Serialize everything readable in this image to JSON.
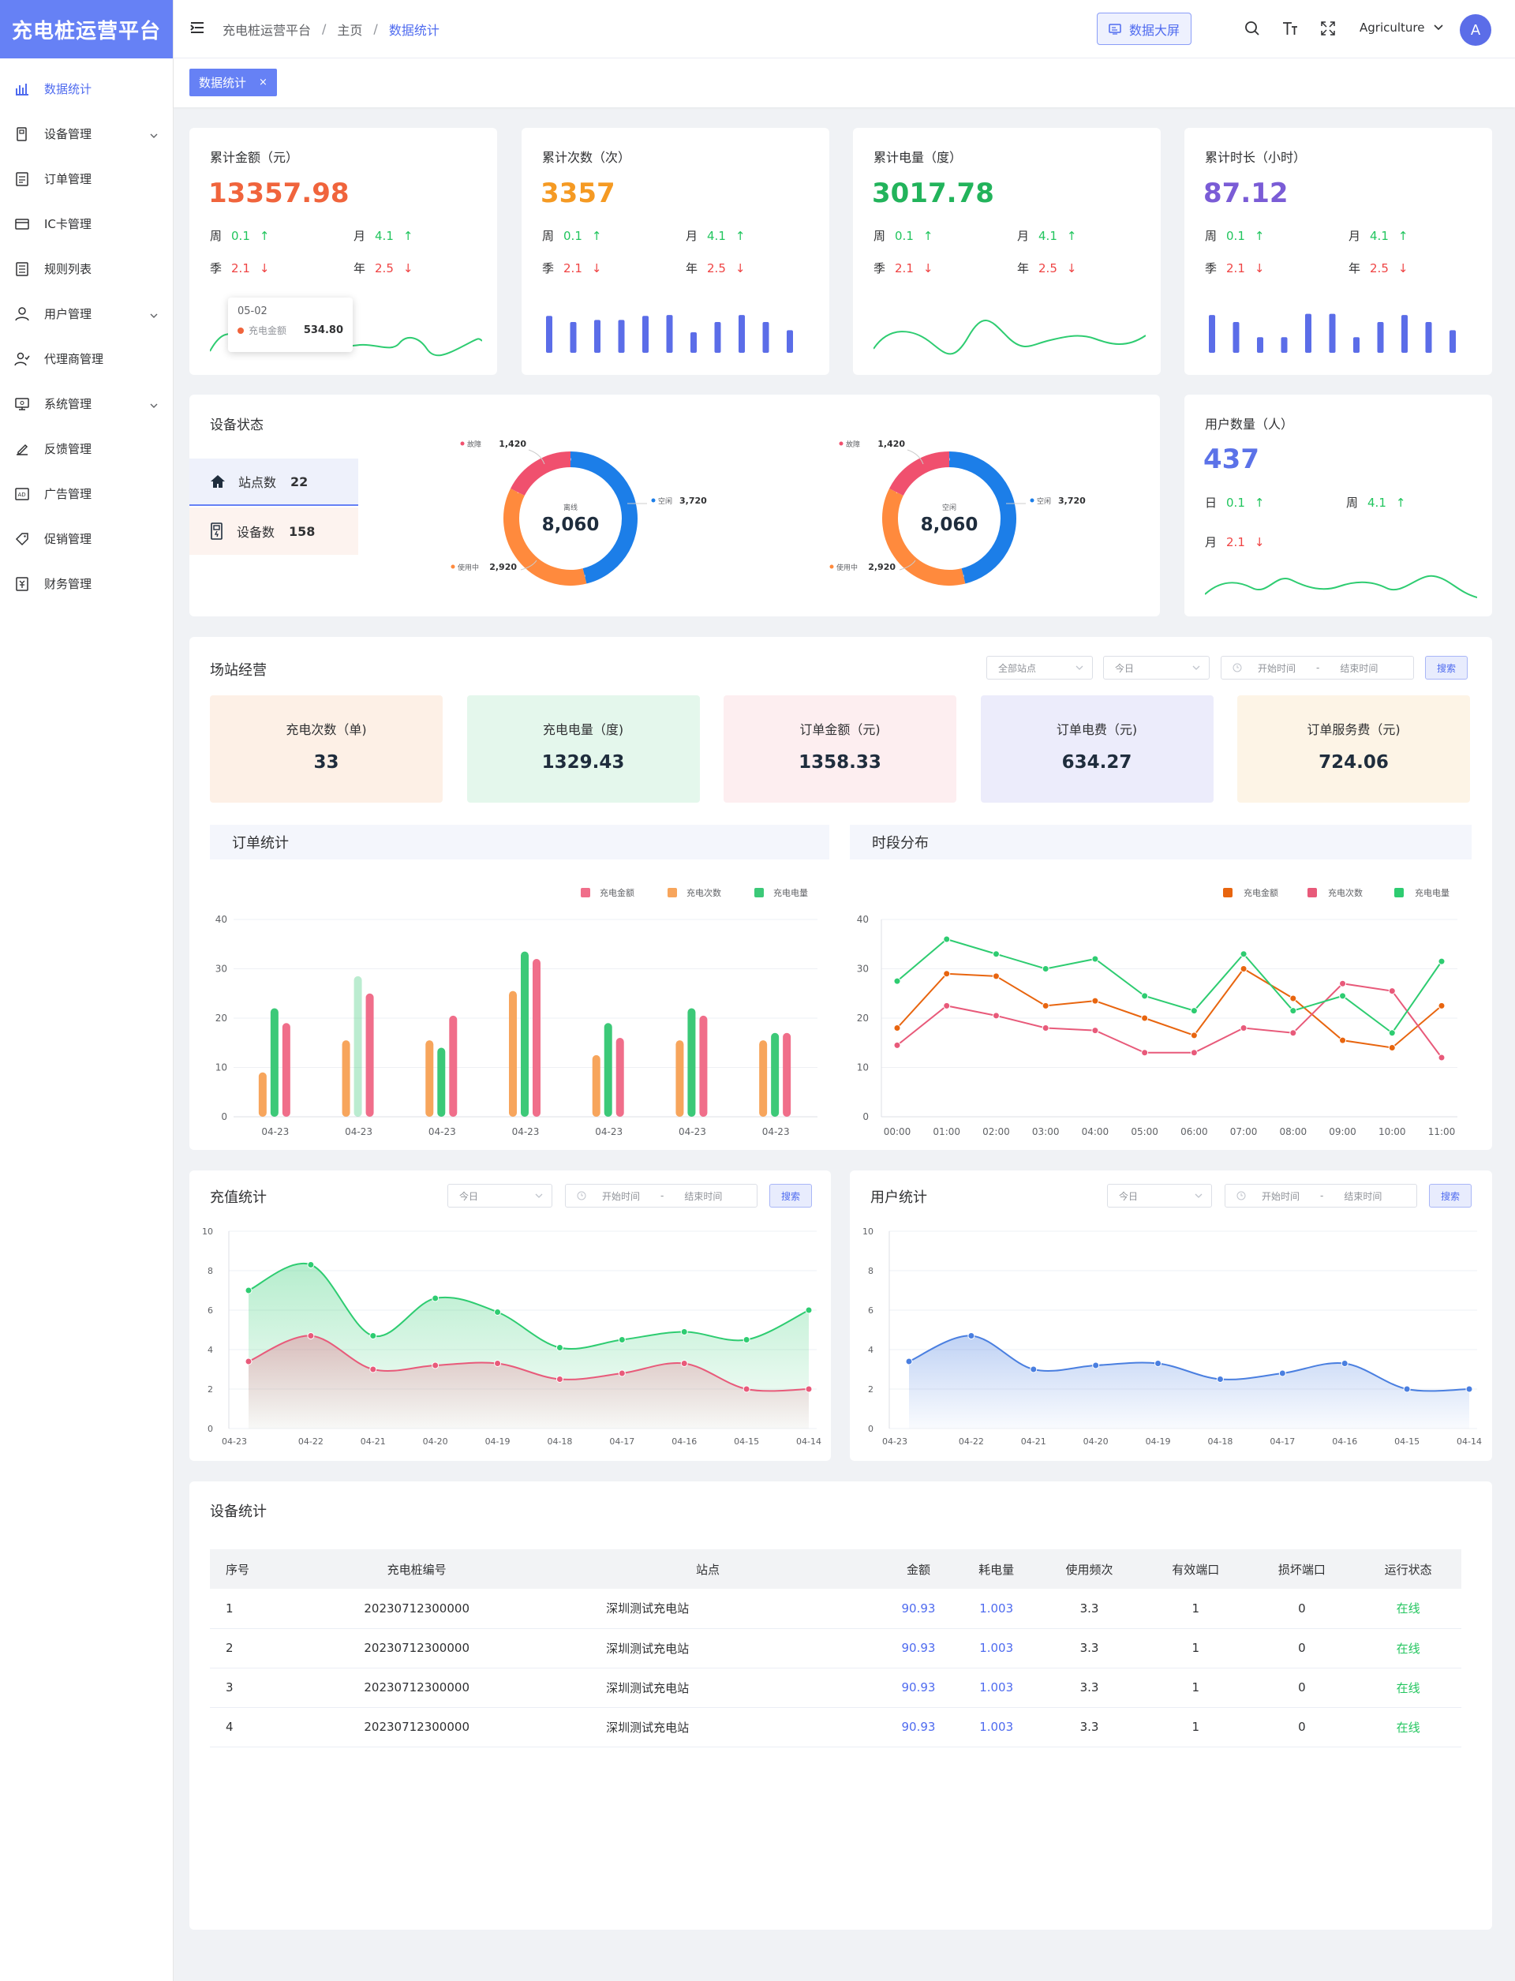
{
  "app": {
    "title": "充电桩运营平台"
  },
  "sidebar": {
    "items": [
      {
        "label": "数据统计",
        "icon": "bar-chart-icon",
        "active": true,
        "expandable": false
      },
      {
        "label": "设备管理",
        "icon": "device-icon",
        "active": false,
        "expandable": true
      },
      {
        "label": "订单管理",
        "icon": "order-icon",
        "active": false,
        "expandable": false
      },
      {
        "label": "IC卡管理",
        "icon": "card-icon",
        "active": false,
        "expandable": false
      },
      {
        "label": "规则列表",
        "icon": "rules-icon",
        "active": false,
        "expandable": false
      },
      {
        "label": "用户管理",
        "icon": "user-icon",
        "active": false,
        "expandable": true
      },
      {
        "label": "代理商管理",
        "icon": "agent-icon",
        "active": false,
        "expandable": false
      },
      {
        "label": "系统管理",
        "icon": "monitor-icon",
        "active": false,
        "expandable": true
      },
      {
        "label": "反馈管理",
        "icon": "feedback-icon",
        "active": false,
        "expandable": false
      },
      {
        "label": "广告管理",
        "icon": "ad-icon",
        "active": false,
        "expandable": false
      },
      {
        "label": "促销管理",
        "icon": "tag-icon",
        "active": false,
        "expandable": false
      },
      {
        "label": "财务管理",
        "icon": "finance-icon",
        "active": false,
        "expandable": false
      }
    ]
  },
  "header": {
    "breadcrumb": [
      "充电桩运营平台",
      "主页",
      "数据统计"
    ],
    "bigscreen_label": "数据大屏",
    "user_name": "Agriculture",
    "avatar_letter": "A"
  },
  "tabs": [
    {
      "label": "数据统计",
      "close": "×"
    }
  ],
  "kpis": [
    {
      "title": "累计金额（元）",
      "value": "13357.98",
      "color": "#f0643c",
      "week_label": "周",
      "week": "0.1",
      "month_label": "月",
      "month": "4.1",
      "quarter_label": "季",
      "quarter": "2.1",
      "year_label": "年",
      "year": "2.5",
      "spark": "line",
      "tooltip": {
        "date": "05-02",
        "series": "充电金额",
        "value": "534.80"
      }
    },
    {
      "title": "累计次数（次）",
      "value": "3357",
      "color": "#f59a23",
      "week_label": "周",
      "week": "0.1",
      "month_label": "月",
      "month": "4.1",
      "quarter_label": "季",
      "quarter": "2.1",
      "year_label": "年",
      "year": "2.5",
      "spark": "bars",
      "bars": [
        0.9,
        0.75,
        0.8,
        0.8,
        0.9,
        0.92,
        0.5,
        0.75,
        0.92,
        0.75,
        0.55
      ]
    },
    {
      "title": "累计电量（度）",
      "value": "3017.78",
      "color": "#22b35b",
      "week_label": "周",
      "week": "0.1",
      "month_label": "月",
      "month": "4.1",
      "quarter_label": "季",
      "quarter": "2.1",
      "year_label": "年",
      "year": "2.5",
      "spark": "line"
    },
    {
      "title": "累计时长（小时）",
      "value": "87.12",
      "color": "#7a5cd6",
      "week_label": "周",
      "week": "0.1",
      "month_label": "月",
      "month": "4.1",
      "quarter_label": "季",
      "quarter": "2.1",
      "year_label": "年",
      "year": "2.5",
      "spark": "bars",
      "bars": [
        0.92,
        0.75,
        0.38,
        0.38,
        0.95,
        0.95,
        0.38,
        0.75,
        0.92,
        0.75,
        0.55
      ]
    }
  ],
  "device_status": {
    "title": "设备状态",
    "stations_label": "站点数",
    "stations": "22",
    "devices_label": "设备数",
    "devices": "158",
    "donuts": [
      {
        "total": "8,060",
        "center_label": "离线",
        "segments": [
          {
            "name": "故障",
            "value": 1420,
            "display": "1,420",
            "color": "#f0506e"
          },
          {
            "name": "空闲",
            "value": 3720,
            "display": "3,720",
            "color": "#1c7ee8"
          },
          {
            "name": "使用中",
            "value": 2920,
            "display": "2,920",
            "color": "#ff8a3d"
          }
        ]
      },
      {
        "total": "8,060",
        "center_label": "空闲",
        "segments": [
          {
            "name": "故障",
            "value": 1420,
            "display": "1,420",
            "color": "#f0506e"
          },
          {
            "name": "空闲",
            "value": 3720,
            "display": "3,720",
            "color": "#1c7ee8"
          },
          {
            "name": "使用中",
            "value": 2920,
            "display": "2,920",
            "color": "#ff8a3d"
          }
        ]
      }
    ]
  },
  "user_count": {
    "title": "用户数量（人）",
    "value": "437",
    "day_label": "日",
    "day": "0.1",
    "week_label": "周",
    "week": "4.1",
    "month_label": "月",
    "month": "2.1"
  },
  "station_ops": {
    "title": "场站经营",
    "filters": {
      "station": "全部站点",
      "range": "今日",
      "start": "开始时间",
      "dash": "-",
      "end": "结束时间",
      "search": "搜索"
    },
    "boxes": [
      {
        "label": "充电次数（单)",
        "value": "33",
        "bg": "#fdf0e6"
      },
      {
        "label": "充电电量（度)",
        "value": "1329.43",
        "bg": "#e4f7ec"
      },
      {
        "label": "订单金额（元)",
        "value": "1358.33",
        "bg": "#fdeef0"
      },
      {
        "label": "订单电费（元)",
        "value": "634.27",
        "bg": "#ececfb"
      },
      {
        "label": "订单服务费（元)",
        "value": "724.06",
        "bg": "#fdf4e6"
      }
    ]
  },
  "order_chart_title": "订单统计",
  "period_chart_title": "时段分布",
  "recharge": {
    "title": "充值统计",
    "range": "今日",
    "start": "开始时间",
    "dash": "-",
    "end": "结束时间",
    "search": "搜索"
  },
  "user_stats": {
    "title": "用户统计",
    "range": "今日",
    "start": "开始时间",
    "dash": "-",
    "end": "结束时间",
    "search": "搜索"
  },
  "chart_data": [
    {
      "type": "bar",
      "title": "订单统计",
      "categories": [
        "04-23",
        "04-23",
        "04-23",
        "04-23",
        "04-23",
        "04-23",
        "04-23"
      ],
      "ylim": [
        0,
        40
      ],
      "yticks": [
        0,
        10,
        20,
        30,
        40
      ],
      "series": [
        {
          "name": "充电金额",
          "color": "#f06e8a",
          "values": [
            19,
            25,
            20.5,
            32,
            16,
            20.5,
            17
          ]
        },
        {
          "name": "充电次数",
          "color": "#f7a55c",
          "values": [
            9,
            15.5,
            15.5,
            25.5,
            12.5,
            15.5,
            15.5
          ]
        },
        {
          "name": "充电电量",
          "color": "#3cc978",
          "values": [
            22,
            28.5,
            14,
            33.5,
            19,
            22,
            17
          ]
        }
      ],
      "legend": "top-right"
    },
    {
      "type": "line",
      "title": "时段分布",
      "categories": [
        "00:00",
        "01:00",
        "02:00",
        "03:00",
        "04:00",
        "05:00",
        "06:00",
        "07:00",
        "08:00",
        "09:00",
        "10:00",
        "11:00"
      ],
      "ylim": [
        0,
        40
      ],
      "yticks": [
        0,
        10,
        20,
        30,
        40
      ],
      "series": [
        {
          "name": "充电金额",
          "color": "#e8650f",
          "values": [
            18,
            29,
            28.5,
            22.5,
            23.5,
            20,
            16.5,
            30,
            24,
            15.5,
            14,
            22.5
          ]
        },
        {
          "name": "充电次数",
          "color": "#e85a7a",
          "values": [
            14.5,
            22.5,
            20.5,
            18,
            17.5,
            13,
            13,
            18,
            17,
            27,
            25.5,
            12
          ]
        },
        {
          "name": "充电电量",
          "color": "#2ecc71",
          "values": [
            27.5,
            36,
            33,
            30,
            32,
            24.5,
            21.5,
            33,
            21.5,
            24.5,
            17,
            31.5
          ]
        }
      ],
      "legend": "top-right"
    },
    {
      "type": "area",
      "title": "充值统计",
      "categories": [
        "04-23",
        "04-22",
        "04-21",
        "04-20",
        "04-19",
        "04-18",
        "04-17",
        "04-16",
        "04-15",
        "04-14"
      ],
      "ylim": [
        0,
        10
      ],
      "yticks": [
        0,
        2,
        4,
        6,
        8,
        10
      ],
      "series": [
        {
          "color": "#2ecc71",
          "values": [
            7,
            8.3,
            4.7,
            6.6,
            5.9,
            4.1,
            4.5,
            4.9,
            4.5,
            6
          ]
        },
        {
          "color": "#e85a7a",
          "values": [
            3.4,
            4.7,
            3,
            3.2,
            3.3,
            2.5,
            2.8,
            3.3,
            2,
            2
          ]
        }
      ]
    },
    {
      "type": "area",
      "title": "用户统计",
      "categories": [
        "04-23",
        "04-22",
        "04-21",
        "04-20",
        "04-19",
        "04-18",
        "04-17",
        "04-16",
        "04-15",
        "04-14"
      ],
      "ylim": [
        0,
        10
      ],
      "yticks": [
        0,
        2,
        4,
        6,
        8,
        10
      ],
      "series": [
        {
          "color": "#4a7fe0",
          "values": [
            3.4,
            4.7,
            3,
            3.2,
            3.3,
            2.5,
            2.8,
            3.3,
            2,
            2
          ]
        }
      ]
    }
  ],
  "device_stats": {
    "title": "设备统计",
    "columns": [
      "序号",
      "充电桩编号",
      "站点",
      "金额",
      "耗电量",
      "使用频次",
      "有效端口",
      "损坏端口",
      "运行状态"
    ],
    "rows": [
      [
        "1",
        "20230712300000",
        "深圳测试充电站",
        "90.93",
        "1.003",
        "3.3",
        "1",
        "0",
        "在线"
      ],
      [
        "2",
        "20230712300000",
        "深圳测试充电站",
        "90.93",
        "1.003",
        "3.3",
        "1",
        "0",
        "在线"
      ],
      [
        "3",
        "20230712300000",
        "深圳测试充电站",
        "90.93",
        "1.003",
        "3.3",
        "1",
        "0",
        "在线"
      ],
      [
        "4",
        "20230712300000",
        "深圳测试充电站",
        "90.93",
        "1.003",
        "3.3",
        "1",
        "0",
        "在线"
      ]
    ]
  }
}
